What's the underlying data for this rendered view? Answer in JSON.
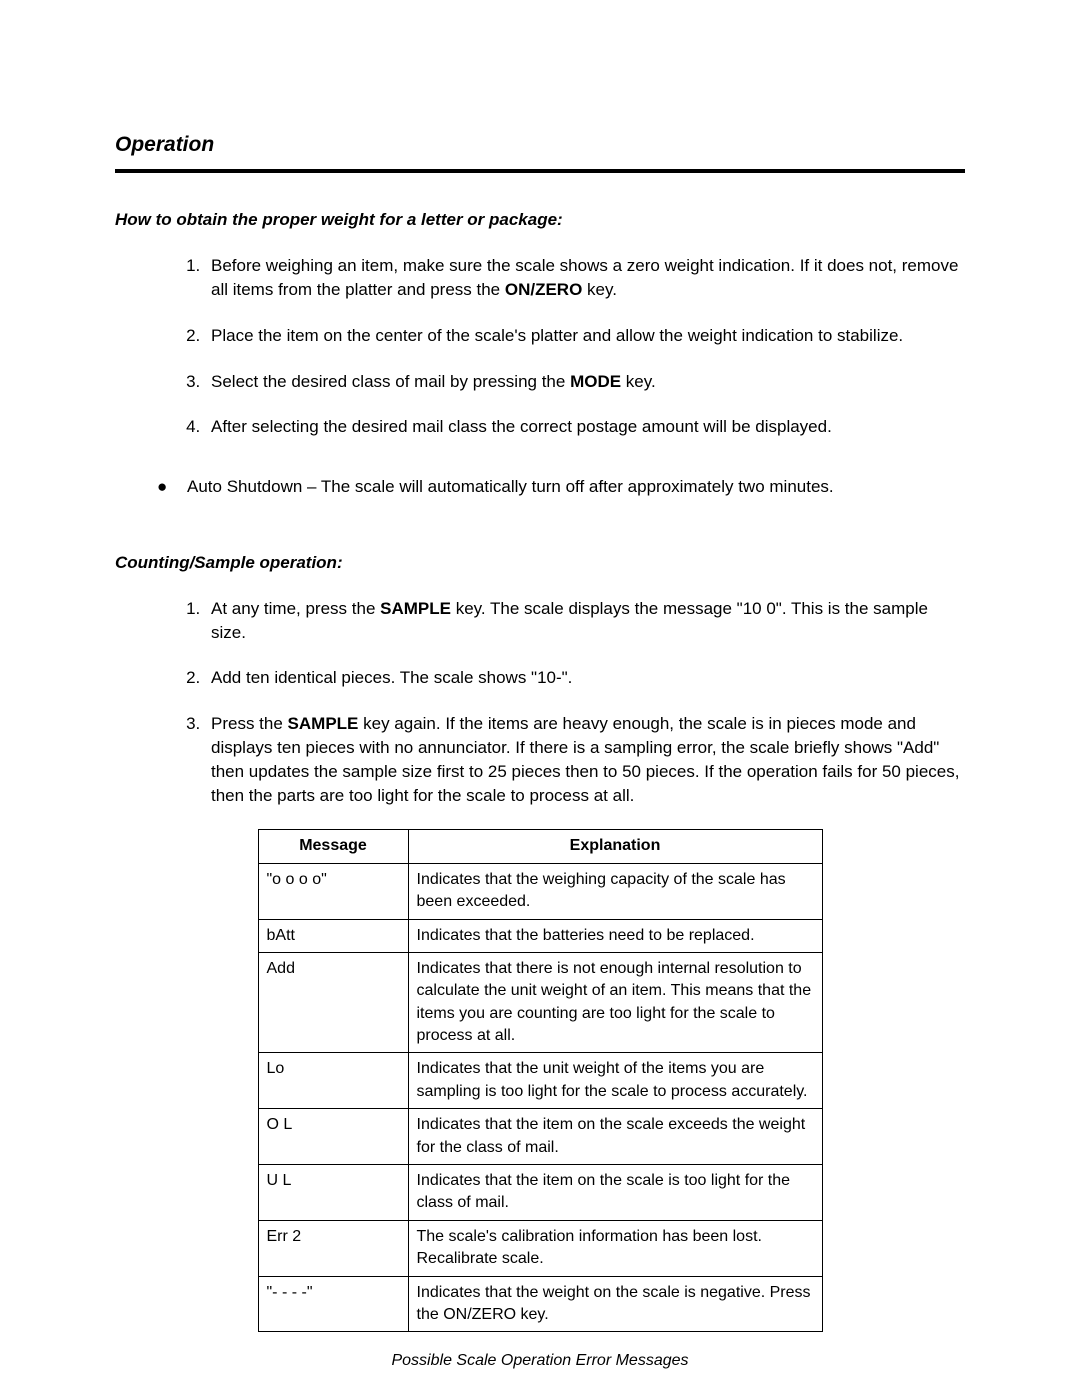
{
  "title": "Operation",
  "section1": {
    "heading": "How to obtain the proper weight for a letter or package:",
    "steps": [
      {
        "pre": "Before weighing an item, make sure the scale shows a zero weight indication.  If it does not, remove all items from the platter and press the ",
        "key": "ON/ZERO",
        "post": " key."
      },
      {
        "pre": "Place the item on the center of the scale's platter and allow the weight indication to stabilize.",
        "key": "",
        "post": ""
      },
      {
        "pre": "Select the desired class of mail by pressing the ",
        "key": "MODE",
        "post": " key."
      },
      {
        "pre": "After selecting the desired mail class the correct postage amount will be displayed.",
        "key": "",
        "post": ""
      }
    ],
    "bullet": "Auto Shutdown – The scale will automatically turn off after approximately two minutes."
  },
  "section2": {
    "heading": "Counting/Sample operation:",
    "steps": [
      {
        "pre": "At any time, press the ",
        "key": "SAMPLE",
        "post": " key.  The scale displays the message \"10 0\".  This is the sample size."
      },
      {
        "pre": "Add ten identical pieces.  The scale shows \"10-\".",
        "key": "",
        "post": ""
      },
      {
        "pre": "Press the ",
        "key": "SAMPLE",
        "post": " key again.  If the items are heavy enough, the scale is in pieces mode and displays ten pieces with no annunciator.  If there is a sampling error, the scale briefly shows \"Add\" then updates the sample size first to 25 pieces then to 50 pieces.  If the operation fails for 50 pieces, then the parts are too light for the scale to process at all."
      }
    ]
  },
  "table": {
    "headers": [
      "Message",
      "Explanation"
    ],
    "rows": [
      [
        "\"o o o o\"",
        "Indicates that the weighing capacity of the scale has been exceeded."
      ],
      [
        "bAtt",
        "Indicates that the batteries need to be replaced."
      ],
      [
        "Add",
        "Indicates that there is not enough internal resolution to calculate the unit weight of an item.  This means that the items you are counting are too light for the scale to process at all."
      ],
      [
        "Lo",
        "Indicates that the unit weight of the items you are sampling is too light for the scale to process accurately."
      ],
      [
        "O L",
        "Indicates that the item on the scale exceeds the weight for the class of mail."
      ],
      [
        "U L",
        "Indicates that the item on the scale is too light for the class of mail."
      ],
      [
        "Err 2",
        "The scale's calibration information has been lost.  Recalibrate scale."
      ],
      [
        "\"- - - -\"",
        "Indicates that the weight on the scale is negative.  Press the ON/ZERO key."
      ]
    ],
    "caption": "Possible Scale Operation Error Messages"
  }
}
